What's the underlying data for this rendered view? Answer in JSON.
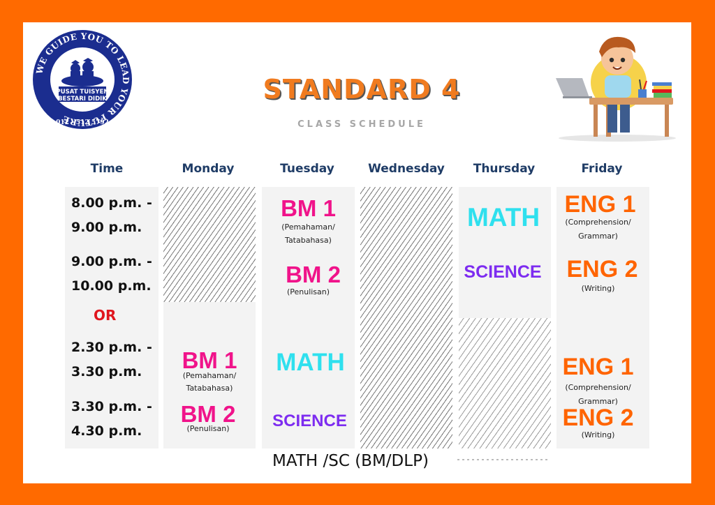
{
  "logo": {
    "ring_text": "WE GUIDE YOU TO LEAD YOUR FUTURE",
    "phone": "012 - 512 5792",
    "banner_line1": "PUSAT TUISYEN",
    "banner_line2": "BESTARI DIDIK",
    "colors": {
      "navy": "#1b2d8f",
      "white": "#ffffff"
    }
  },
  "header": {
    "title": "STANDARD 4",
    "subtitle": "CLASS SCHEDULE"
  },
  "illustration": {
    "icon": "student-at-desk-illustration"
  },
  "schedule": {
    "days": {
      "time": "Time",
      "monday": "Monday",
      "tuesday": "Tuesday",
      "wednesday": "Wednesday",
      "thursday": "Thursday",
      "friday": "Friday"
    },
    "times": {
      "slot1_a": "8.00  p.m. -",
      "slot1_b": "9.00 p.m.",
      "slot2_a": "9.00 p.m. -",
      "slot2_b": "10.00 p.m.",
      "or": "OR",
      "slot3_a": "2.30 p.m. -",
      "slot3_b": "3.30 p.m.",
      "slot4_a": "3.30 p.m. -",
      "slot4_b": "4.30 p.m."
    },
    "monday": {
      "bm1": "BM 1",
      "bm1_note1": "(Pemahaman/",
      "bm1_note2": "Tatabahasa)",
      "bm2": "BM 2",
      "bm2_note": "(Penulisan)"
    },
    "tuesday": {
      "bm1": "BM 1",
      "bm1_note1": "(Pemahaman/",
      "bm1_note2": "Tatabahasa)",
      "bm2": "BM 2",
      "bm2_note": "(Penulisan)",
      "math": "MATH",
      "science": "SCIENCE"
    },
    "thursday": {
      "math": "MATH",
      "science": "SCIENCE"
    },
    "friday": {
      "eng1": "ENG 1",
      "eng1_note1": "(Comprehension/",
      "eng1_note2": "Grammar)",
      "eng2": "ENG 2",
      "eng2_note": "(Writing)",
      "eng1b": "ENG 1",
      "eng1b_note1": "(Comprehension/",
      "eng1b_note2": "Grammar)",
      "eng2b": "ENG 2",
      "eng2b_note": "(Writing)"
    }
  },
  "footer": "MATH /SC (BM/DLP)",
  "colors": {
    "frame": "#ff6a00",
    "title": "#f07b1f",
    "bm": "#f0138a",
    "math": "#2fe0ee",
    "science": "#7d2cf0",
    "eng": "#ff6400",
    "or": "#e0161e",
    "header": "#1f3c66"
  }
}
